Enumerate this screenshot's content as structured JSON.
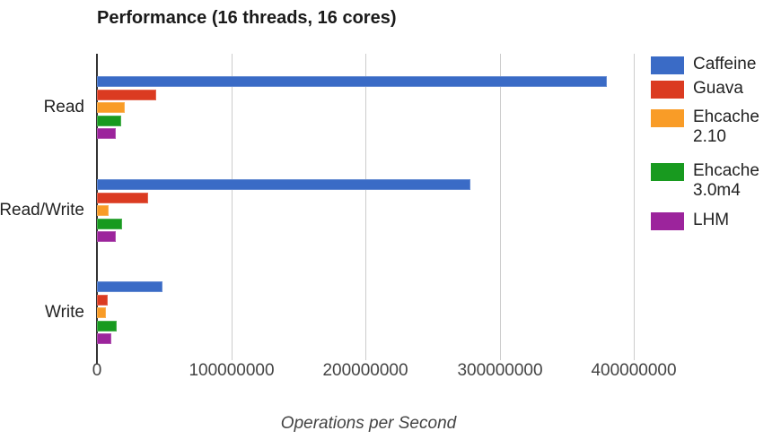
{
  "chart_data": {
    "type": "bar",
    "orientation": "horizontal",
    "title": "Performance (16 threads, 16 cores)",
    "xlabel": "Operations per Second",
    "ylabel": "",
    "categories": [
      "Read",
      "Read/Write",
      "Write"
    ],
    "series": [
      {
        "name": "Caffeine",
        "color": "#3A6BC6",
        "values": [
          380000000,
          278000000,
          49000000
        ]
      },
      {
        "name": "Guava",
        "color": "#DB3B21",
        "values": [
          44000000,
          38000000,
          8000000
        ]
      },
      {
        "name": "Ehcache 2.10",
        "color": "#F99C27",
        "values": [
          21000000,
          9000000,
          6500000
        ]
      },
      {
        "name": "Ehcache 3.0m4",
        "color": "#189A1F",
        "values": [
          18000000,
          19000000,
          15000000
        ]
      },
      {
        "name": "LHM",
        "color": "#9C249C",
        "values": [
          14000000,
          14000000,
          11000000
        ]
      }
    ],
    "legend_labels": [
      [
        "Caffeine"
      ],
      [
        "Guava"
      ],
      [
        "Ehcache",
        "2.10"
      ],
      [
        "Ehcache",
        "3.0m4"
      ],
      [
        "LHM"
      ]
    ],
    "x_ticks": [
      0,
      100000000,
      200000000,
      300000000,
      400000000
    ],
    "x_tick_labels": [
      "0",
      "100000000",
      "200000000",
      "300000000",
      "400000000"
    ],
    "xlim": [
      0,
      405000000
    ],
    "grid": true,
    "legend_position": "right",
    "colors": {
      "title_text": "#1a1a1a",
      "axis_line": "#333333",
      "gridline": "#cccccc",
      "tick_text": "#444444",
      "label_text": "#222222"
    }
  }
}
